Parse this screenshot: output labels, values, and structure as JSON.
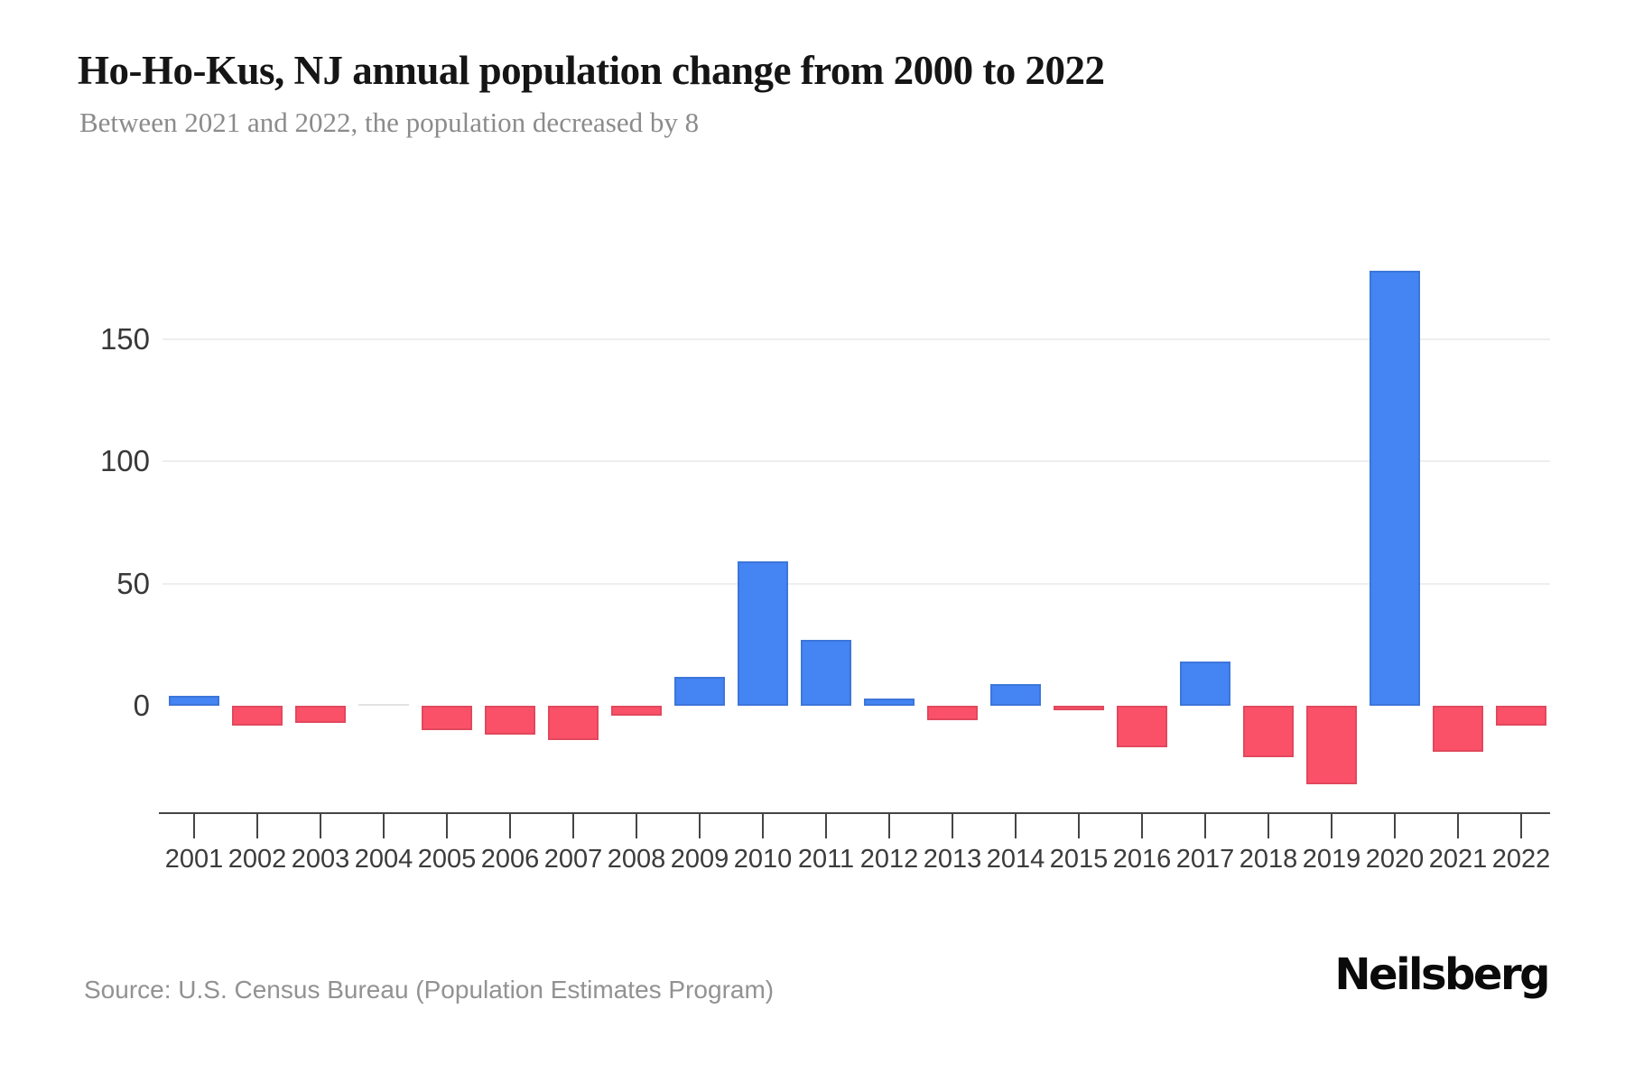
{
  "header": {
    "title": "Ho-Ho-Kus, NJ annual population change from 2000 to 2022",
    "subtitle": "Between 2021 and 2022, the population decreased by 8"
  },
  "footer": {
    "source": "Source: U.S. Census Bureau (Population Estimates Program)",
    "brand": "Neilsberg"
  },
  "chart_data": {
    "type": "bar",
    "title": "Ho-Ho-Kus, NJ annual population change from 2000 to 2022",
    "subtitle": "Between 2021 and 2022, the population decreased by 8",
    "categories": [
      "2001",
      "2002",
      "2003",
      "2004",
      "2005",
      "2006",
      "2007",
      "2008",
      "2009",
      "2010",
      "2011",
      "2012",
      "2013",
      "2014",
      "2015",
      "2016",
      "2017",
      "2018",
      "2019",
      "2020",
      "2021",
      "2022"
    ],
    "values": [
      4,
      -8,
      -7,
      0,
      -10,
      -12,
      -14,
      -4,
      12,
      59,
      27,
      3,
      -6,
      9,
      -2,
      -17,
      18,
      -21,
      -32,
      178,
      -19,
      -8
    ],
    "xlabel": "",
    "ylabel": "",
    "yticks": [
      0,
      50,
      100,
      150
    ],
    "ylim": [
      -45,
      195
    ],
    "grid": "horizontal",
    "legend": "none",
    "colors": {
      "positive": "#4484F3",
      "negative": "#FB5168",
      "zero": "#E3E3E3"
    }
  }
}
